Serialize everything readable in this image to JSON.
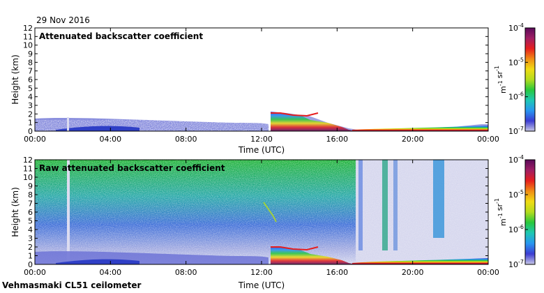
{
  "header": {
    "date": "29 Nov 2016",
    "instrument": "Vehmasmaki CL51 ceilometer"
  },
  "colorbar": {
    "stops": [
      "#c8c8e6",
      "#3c3cd2",
      "#2896f0",
      "#1ec8b4",
      "#28c83c",
      "#b4dc1e",
      "#f0dc14",
      "#f08c14",
      "#e61e1e",
      "#a01e64",
      "#5a0a5a"
    ]
  },
  "chart_data": [
    {
      "type": "heatmap",
      "title": "Attenuated backscatter coefficient",
      "xlabel": "Time (UTC)",
      "ylabel": "Height (km)",
      "x_ticks": [
        "00:00",
        "04:00",
        "08:00",
        "12:00",
        "16:00",
        "20:00",
        "00:00"
      ],
      "y_ticks": [
        "0",
        "1",
        "2",
        "3",
        "4",
        "5",
        "6",
        "7",
        "8",
        "9",
        "10",
        "11",
        "12"
      ],
      "ylim": [
        0,
        12
      ],
      "colorbar": {
        "scale": "log",
        "ticks": [
          "10-7",
          "10-6",
          "10-5",
          "10-4"
        ],
        "unit": "m-1 sr-1",
        "range": [
          1e-07,
          0.0001
        ]
      }
    },
    {
      "type": "heatmap",
      "title": "Raw attenuated backscatter coefficient",
      "xlabel": "Time (UTC)",
      "ylabel": "Height (km)",
      "x_ticks": [
        "00:00",
        "04:00",
        "08:00",
        "12:00",
        "16:00",
        "20:00",
        "00:00"
      ],
      "y_ticks": [
        "0",
        "1",
        "2",
        "3",
        "4",
        "5",
        "6",
        "7",
        "8",
        "9",
        "10",
        "11",
        "12"
      ],
      "ylim": [
        0,
        12
      ],
      "colorbar": {
        "scale": "log",
        "ticks": [
          "10-7",
          "10-6",
          "10-5",
          "10-4"
        ],
        "unit": "m-1 sr-1",
        "range": [
          1e-07,
          0.0001
        ]
      }
    }
  ]
}
